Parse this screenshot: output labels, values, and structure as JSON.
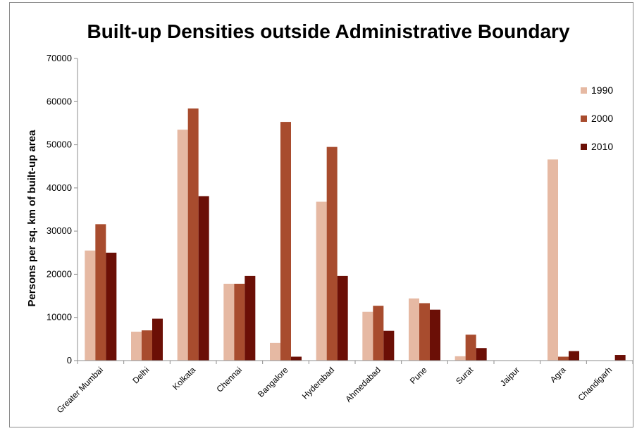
{
  "chart_data": {
    "type": "bar",
    "title": "Built-up Densities outside Administrative Boundary",
    "xlabel": "",
    "ylabel": "Persons per sq. km of built-up area",
    "ylim": [
      0,
      70000
    ],
    "yticks": [
      0,
      10000,
      20000,
      30000,
      40000,
      50000,
      60000,
      70000
    ],
    "grid": false,
    "legend_position": "right",
    "categories": [
      "Greater Mumbai",
      "Delhi",
      "Kolkata",
      "Chennai",
      "Bangalore",
      "Hyderabad",
      "Ahmedabad",
      "Pune",
      "Surat",
      "Jaipur",
      "Agra",
      "Chandigarh"
    ],
    "series": [
      {
        "name": "1990",
        "color": "#e6b9a3",
        "values": [
          25500,
          6700,
          53500,
          17800,
          4100,
          36800,
          11300,
          14400,
          1000,
          0,
          46600,
          0
        ]
      },
      {
        "name": "2000",
        "color": "#a84c2e",
        "values": [
          31600,
          7000,
          58400,
          17800,
          55300,
          49500,
          12700,
          13300,
          6000,
          0,
          900,
          0
        ]
      },
      {
        "name": "2010",
        "color": "#6b0f06",
        "values": [
          25000,
          9700,
          38100,
          19600,
          900,
          19600,
          6900,
          11800,
          2900,
          0,
          2200,
          1300
        ]
      }
    ]
  }
}
